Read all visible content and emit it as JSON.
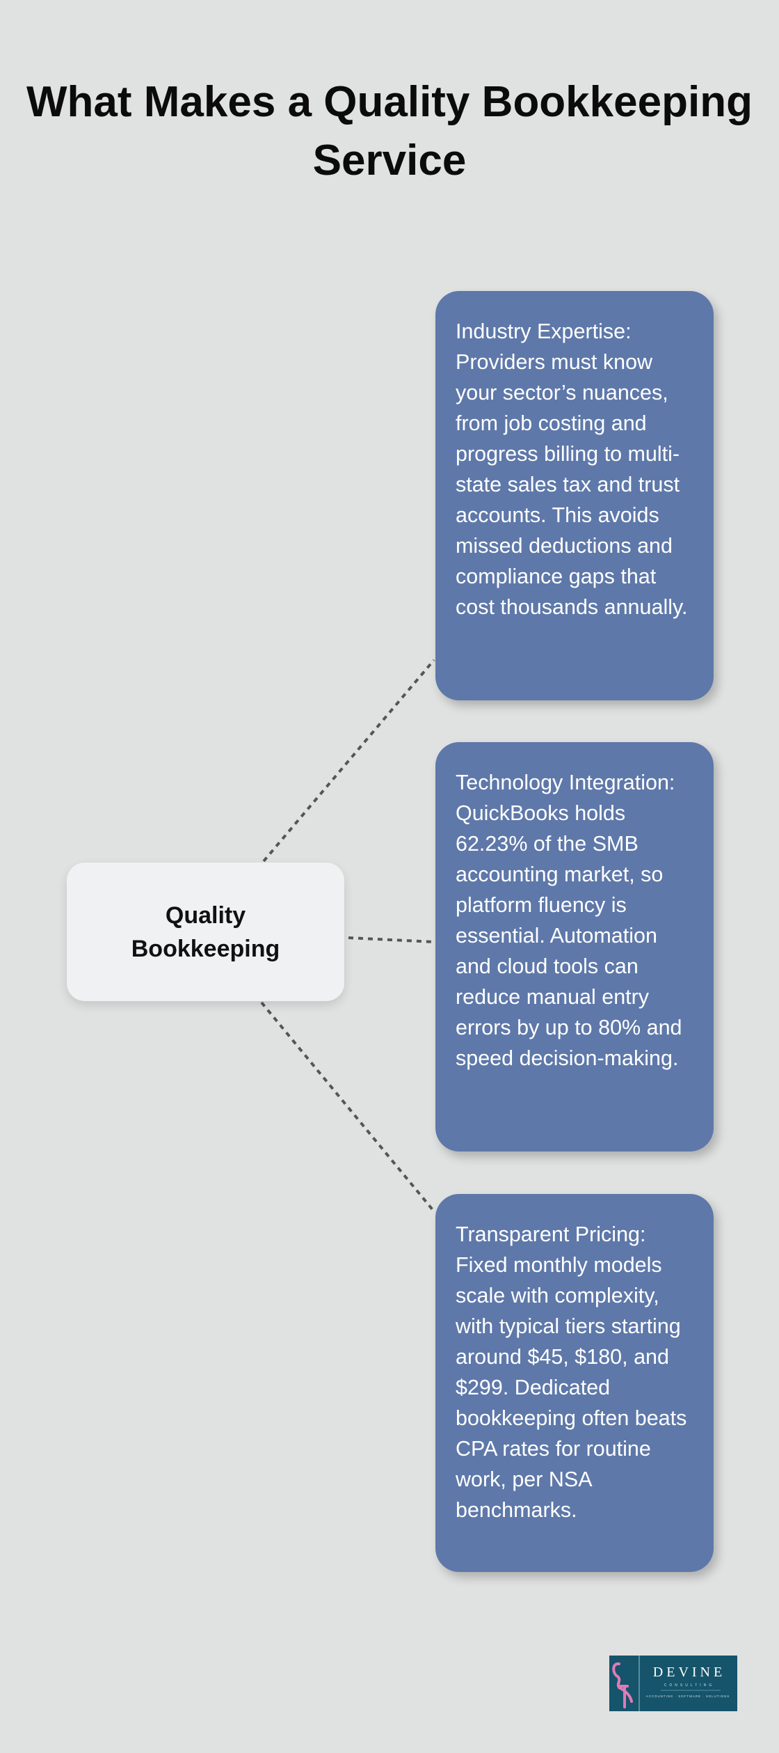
{
  "title": "What Makes a Quality Bookkeeping Service",
  "hub": {
    "label": "Quality Bookkeeping"
  },
  "cards": [
    {
      "text": "Industry Expertise: Providers must know your sector’s nuances, from job costing and progress billing to multi-state sales tax and trust accounts. This avoids missed deductions and compliance gaps that cost thousands annually."
    },
    {
      "text": "Technology Integration: QuickBooks holds 62.23% of the SMB accounting market, so platform fluency is essential. Automation and cloud tools can reduce manual entry errors by up to 80% and speed decision-making."
    },
    {
      "text": "Transparent Pricing: Fixed monthly models scale with complexity, with typical tiers starting around $45, $180, and $299. Dedicated bookkeeping often beats CPA rates for routine work, per NSA benchmarks."
    }
  ],
  "logo": {
    "name": "DEVINE",
    "sub": "CONSULTING",
    "tagline": "ACCOUNTING · SOFTWARE · SOLUTIONS"
  },
  "colors": {
    "background": "#e0e2e1",
    "card": "#5e78a9",
    "hub": "#f0f1f3",
    "logo_bg": "#15546b",
    "flamingo": "#e07bb5"
  }
}
